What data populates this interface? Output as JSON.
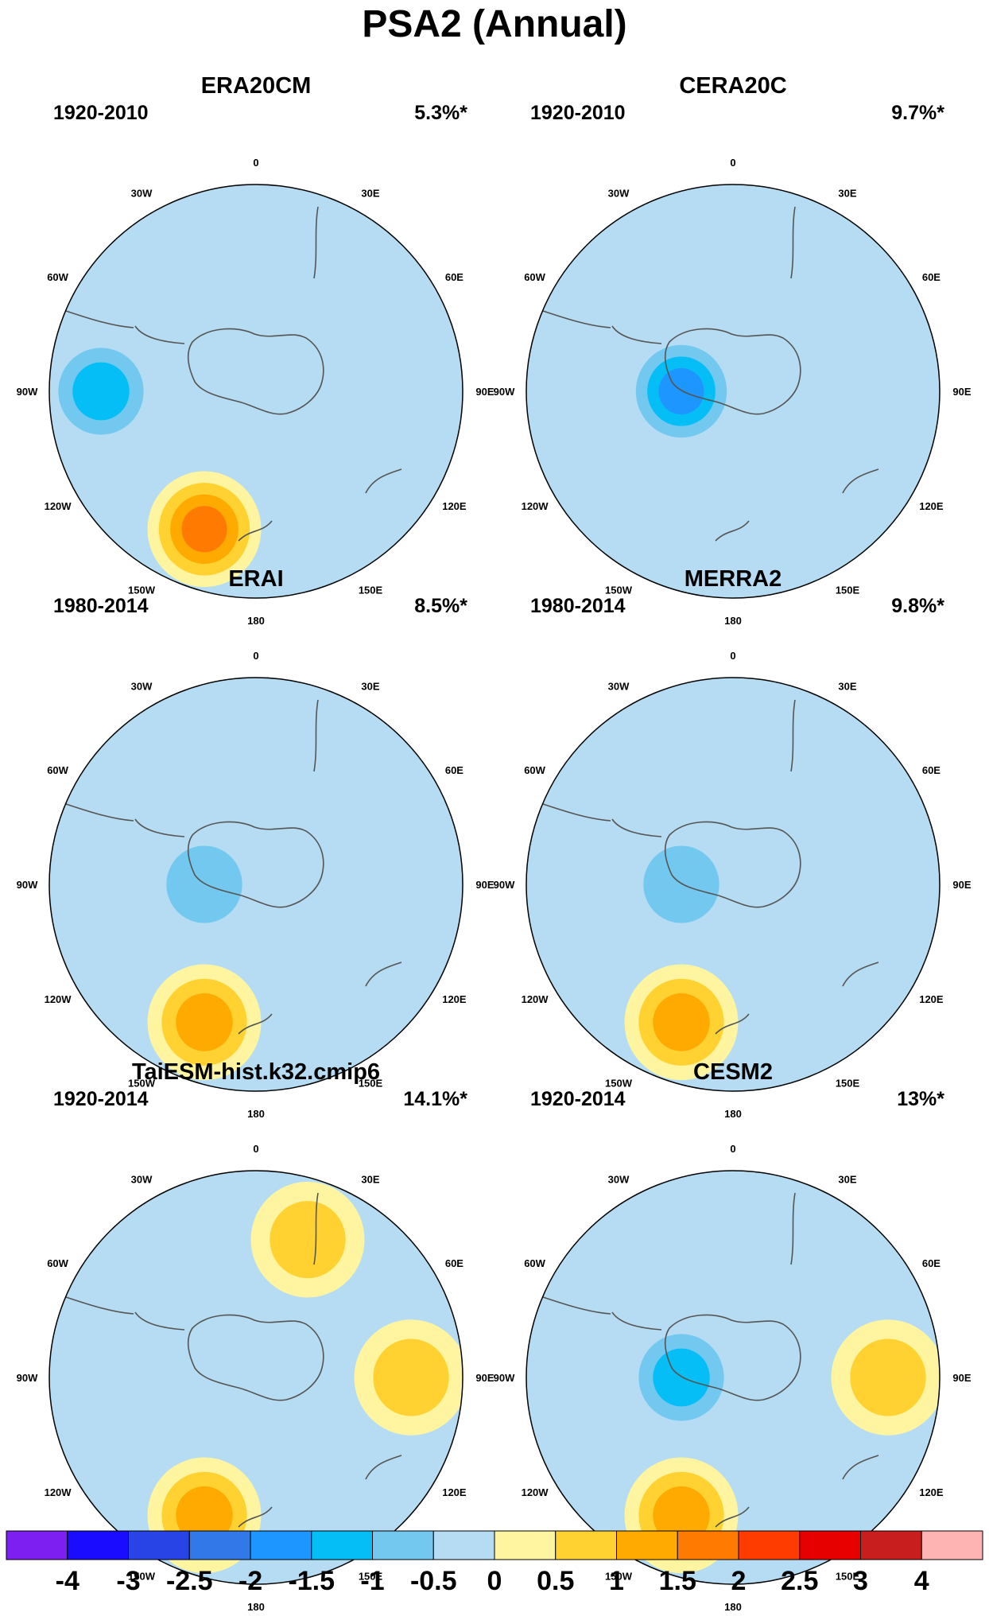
{
  "title": "PSA2 (Annual)",
  "colors": {
    "ocean_fill": "#b5dcf2",
    "coast": "#555555",
    "levels": [
      "#7d1ff0",
      "#1a0dff",
      "#2844e6",
      "#3278e8",
      "#1e96ff",
      "#05bef5",
      "#73c8f0",
      "#b5dcf2",
      "#fff5a0",
      "#ffd232",
      "#ffaa00",
      "#ff7a00",
      "#ff3c00",
      "#e60000",
      "#c81e1e",
      "#ffb4b4"
    ]
  },
  "longitude_labels": [
    "0",
    "30E",
    "60E",
    "90E",
    "120E",
    "150E",
    "180",
    "150W",
    "120W",
    "90W",
    "60W",
    "30W"
  ],
  "panels": [
    {
      "name": "ERA20CM",
      "period": "1920-2010",
      "variance": "5.3%*",
      "field": [
        [
          -0.5,
          0.5,
          0.5,
          -0.5
        ],
        [
          -1.5,
          0.5,
          -0.5,
          0.5
        ],
        [
          -0.5,
          2.0,
          0.5,
          -0.5
        ]
      ]
    },
    {
      "name": "CERA20C",
      "period": "1920-2010",
      "variance": "9.7%*",
      "field": [
        [
          -0.5,
          -0.5,
          0.5,
          -0.5
        ],
        [
          0.5,
          -2.0,
          0.5,
          -0.5
        ],
        [
          0.5,
          0.5,
          -0.5,
          -0.5
        ]
      ]
    },
    {
      "name": "ERAI",
      "period": "1980-2014",
      "variance": "8.5%*",
      "field": [
        [
          -0.5,
          0.5,
          0.5,
          -0.5
        ],
        [
          -0.5,
          -1.0,
          0.5,
          0.5
        ],
        [
          -0.5,
          1.5,
          -0.5,
          -0.5
        ]
      ]
    },
    {
      "name": "MERRA2",
      "period": "1980-2014",
      "variance": "9.8%*",
      "field": [
        [
          -0.5,
          0.5,
          0.5,
          -0.5
        ],
        [
          -0.5,
          -1.0,
          0.5,
          0.5
        ],
        [
          -0.5,
          1.5,
          -0.5,
          -0.5
        ]
      ]
    },
    {
      "name": "TaiESM-hist.k32.cmip6",
      "period": "1920-2014",
      "variance": "14.1%*",
      "field": [
        [
          0.5,
          0.5,
          1.0,
          0.5
        ],
        [
          -0.5,
          0.5,
          0.5,
          1.0
        ],
        [
          0.5,
          1.5,
          -0.5,
          -0.5
        ]
      ]
    },
    {
      "name": "CESM2",
      "period": "1920-2014",
      "variance": "13%*",
      "field": [
        [
          -0.5,
          0.5,
          0.5,
          -0.5
        ],
        [
          -0.5,
          -1.5,
          0.5,
          1.0
        ],
        [
          -0.5,
          1.5,
          -0.5,
          -0.5
        ]
      ]
    }
  ],
  "colorbar": {
    "labels": [
      "-4",
      "-3",
      "-2.5",
      "-2",
      "-1.5",
      "-1",
      "-0.5",
      "0",
      "0.5",
      "1",
      "1.5",
      "2",
      "2.5",
      "3",
      "4"
    ]
  }
}
